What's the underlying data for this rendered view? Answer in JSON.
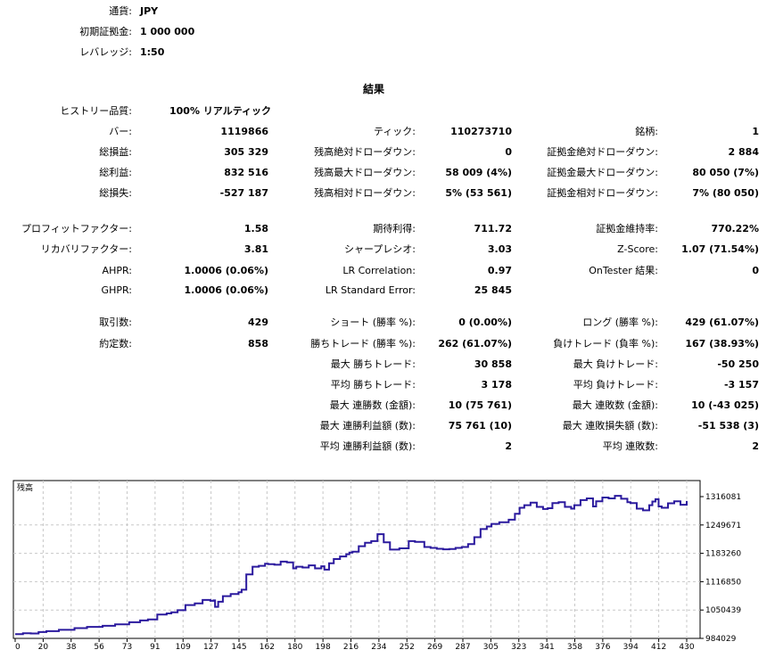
{
  "header": {
    "currency_label": "通貨:",
    "currency_value": "JPY",
    "deposit_label": "初期証拠金:",
    "deposit_value": "1 000 000",
    "leverage_label": "レバレッジ:",
    "leverage_value": "1:50"
  },
  "results_title": "結果",
  "history": {
    "label": "ヒストリー品質:",
    "value": "100% リアルティック"
  },
  "col1": [
    {
      "label": "バー:",
      "value": "1119866"
    },
    {
      "label": "総損益:",
      "value": "305 329"
    },
    {
      "label": "総利益:",
      "value": "832 516"
    },
    {
      "label": "総損失:",
      "value": "-527 187"
    },
    {
      "label": "プロフィットファクター:",
      "value": "1.58"
    },
    {
      "label": "リカバリファクター:",
      "value": "3.81"
    },
    {
      "label": "AHPR:",
      "value": "1.0006 (0.06%)"
    },
    {
      "label": "GHPR:",
      "value": "1.0006 (0.06%)"
    },
    {
      "label": "取引数:",
      "value": "429"
    },
    {
      "label": "約定数:",
      "value": "858"
    }
  ],
  "col2": [
    {
      "label": "ティック:",
      "value": "110273710"
    },
    {
      "label": "残高絶対ドローダウン:",
      "value": "0"
    },
    {
      "label": "残高最大ドローダウン:",
      "value": "58 009 (4%)"
    },
    {
      "label": "残高相対ドローダウン:",
      "value": "5% (53 561)"
    },
    {
      "label": "期待利得:",
      "value": "711.72"
    },
    {
      "label": "シャープレシオ:",
      "value": "3.03"
    },
    {
      "label": "LR Correlation:",
      "value": "0.97"
    },
    {
      "label": "LR Standard Error:",
      "value": "25 845"
    },
    {
      "label": "ショート (勝率 %):",
      "value": "0 (0.00%)"
    },
    {
      "label": "勝ちトレード (勝率 %):",
      "value": "262 (61.07%)"
    },
    {
      "label": "最大 勝ちトレード:",
      "value": "30 858"
    },
    {
      "label": "平均 勝ちトレード:",
      "value": "3 178"
    },
    {
      "label": "最大 連勝数 (金額):",
      "value": "10 (75 761)"
    },
    {
      "label": "最大 連勝利益額 (数):",
      "value": "75 761 (10)"
    },
    {
      "label": "平均 連勝利益額 (数):",
      "value": "2"
    }
  ],
  "col3": [
    {
      "label": "銘柄:",
      "value": "1"
    },
    {
      "label": "証拠金絶対ドローダウン:",
      "value": "2 884"
    },
    {
      "label": "証拠金最大ドローダウン:",
      "value": "80 050 (7%)"
    },
    {
      "label": "証拠金相対ドローダウン:",
      "value": "7% (80 050)"
    },
    {
      "label": "証拠金維持率:",
      "value": "770.22%"
    },
    {
      "label": "Z-Score:",
      "value": "1.07 (71.54%)"
    },
    {
      "label": "OnTester 結果:",
      "value": "0"
    },
    {
      "label": "ロング (勝率 %):",
      "value": "429 (61.07%)"
    },
    {
      "label": "負けトレード (負率 %):",
      "value": "167 (38.93%)"
    },
    {
      "label": "最大 負けトレード:",
      "value": "-50 250"
    },
    {
      "label": "平均 負けトレード:",
      "value": "-3 157"
    },
    {
      "label": "最大 連敗数 (金額):",
      "value": "10 (-43 025)"
    },
    {
      "label": "最大 連敗損失額 (数):",
      "value": "-51 538 (3)"
    },
    {
      "label": "平均 連敗数:",
      "value": "2"
    }
  ],
  "chart_data": {
    "type": "line",
    "title": "残高",
    "x_ticks": [
      "0",
      "20",
      "38",
      "56",
      "73",
      "91",
      "109",
      "127",
      "145",
      "162",
      "180",
      "198",
      "216",
      "234",
      "252",
      "269",
      "287",
      "305",
      "323",
      "341",
      "358",
      "376",
      "394",
      "412",
      "430"
    ],
    "y_ticks": [
      "1316081",
      "1249671",
      "1183260",
      "1116850",
      "1050439",
      "984029"
    ],
    "ylim": [
      984029,
      1316081
    ],
    "xlim": [
      0,
      430
    ],
    "line_color": "#2b1a9e",
    "series": [
      {
        "x": [
          0,
          5,
          10,
          15,
          20,
          28,
          38,
          46,
          56,
          64,
          73,
          80,
          85,
          91,
          97,
          100,
          104,
          109,
          115,
          120,
          125,
          127,
          128,
          130,
          133,
          138,
          143,
          145,
          148,
          152,
          156,
          160,
          162,
          166,
          170,
          174,
          178,
          180,
          184,
          188,
          192,
          196,
          198,
          201,
          204,
          208,
          212,
          214,
          216,
          220,
          224,
          228,
          232,
          236,
          240,
          246,
          252,
          256,
          262,
          266,
          270,
          274,
          278,
          282,
          286,
          290,
          294,
          298,
          302,
          305,
          310,
          316,
          320,
          323,
          326,
          330,
          334,
          338,
          341,
          344,
          348,
          352,
          356,
          358,
          362,
          366,
          370,
          372,
          376,
          380,
          384,
          388,
          392,
          394,
          398,
          402,
          406,
          408,
          410,
          412,
          414,
          418,
          422,
          426,
          430
        ],
        "y": [
          994000,
          996000,
          995500,
          999000,
          1001000,
          1004000,
          1008000,
          1011000,
          1013500,
          1017000,
          1022000,
          1026000,
          1028500,
          1040000,
          1042500,
          1045000,
          1050000,
          1062000,
          1066000,
          1074000,
          1072000,
          1073000,
          1058000,
          1070000,
          1083000,
          1088000,
          1092000,
          1098000,
          1134000,
          1152000,
          1154000,
          1159000,
          1158000,
          1156500,
          1164000,
          1162000,
          1148000,
          1152000,
          1150000,
          1155000,
          1148000,
          1153000,
          1145000,
          1160000,
          1170000,
          1176000,
          1181000,
          1185000,
          1187000,
          1200000,
          1208000,
          1212000,
          1228000,
          1209000,
          1192000,
          1195000,
          1212000,
          1210000,
          1198000,
          1196000,
          1194000,
          1192500,
          1193500,
          1196000,
          1198000,
          1205000,
          1221000,
          1240000,
          1246000,
          1252000,
          1256000,
          1262000,
          1276000,
          1290000,
          1296000,
          1302000,
          1292000,
          1287000,
          1289000,
          1301000,
          1303000,
          1292000,
          1288000,
          1296000,
          1308000,
          1312000,
          1293000,
          1305000,
          1314000,
          1312000,
          1318000,
          1311000,
          1303000,
          1301000,
          1288000,
          1284000,
          1296000,
          1304500,
          1310000,
          1293000,
          1290000,
          1300500,
          1305000,
          1297000,
          1306000
        ]
      }
    ]
  }
}
